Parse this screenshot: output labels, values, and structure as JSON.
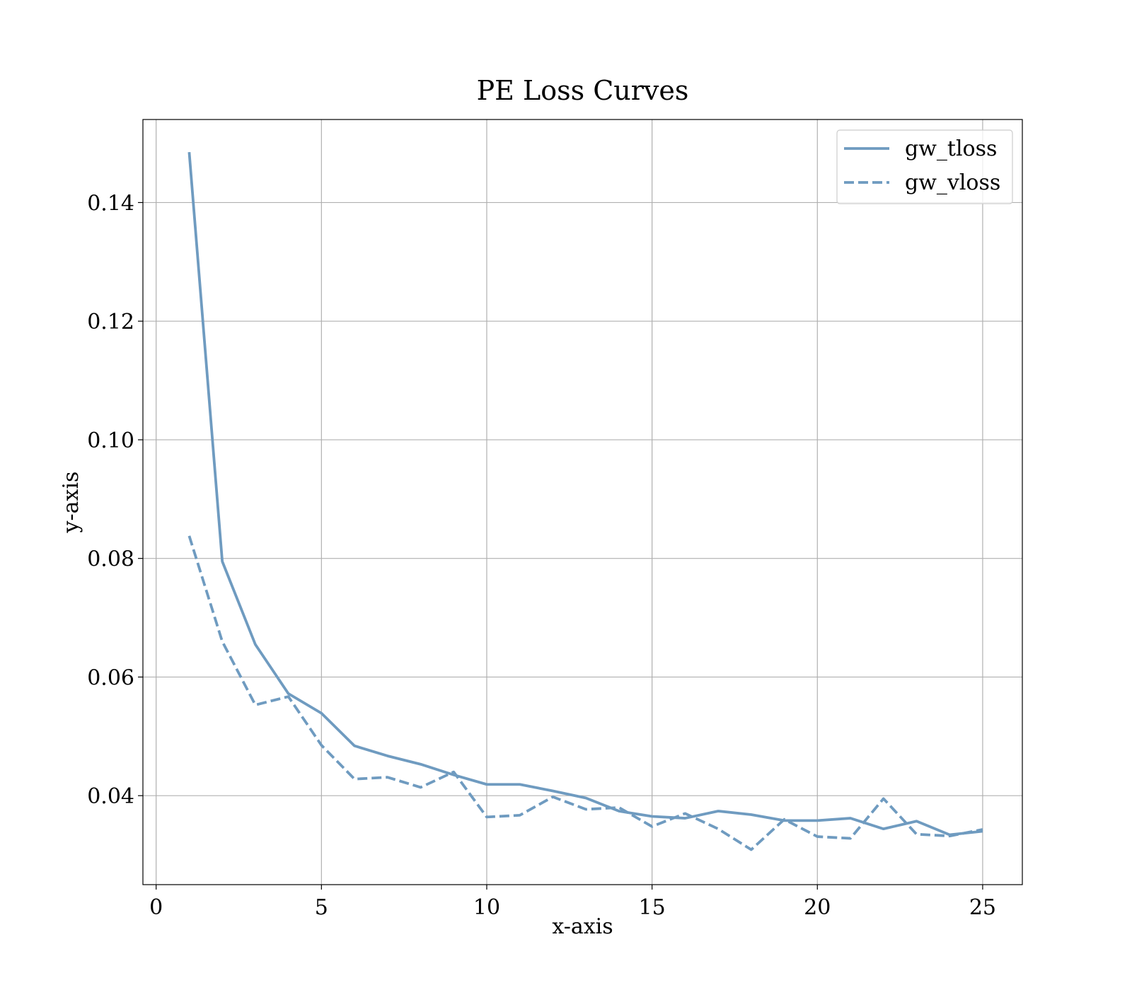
{
  "chart_data": {
    "type": "line",
    "title": "PE Loss Curves",
    "xlabel": "x-axis",
    "ylabel": "y-axis",
    "xlim": [
      -0.4,
      26.2
    ],
    "ylim": [
      0.025,
      0.154
    ],
    "xticks": [
      0,
      5,
      10,
      15,
      20,
      25
    ],
    "xtick_labels": [
      "0",
      "5",
      "10",
      "15",
      "20",
      "25"
    ],
    "yticks": [
      0.04,
      0.06,
      0.08,
      0.1,
      0.12,
      0.14
    ],
    "ytick_labels": [
      "0.04",
      "0.06",
      "0.08",
      "0.10",
      "0.12",
      "0.14"
    ],
    "grid": true,
    "legend_position": "top-right",
    "x": [
      1,
      2,
      3,
      4,
      5,
      6,
      7,
      8,
      9,
      10,
      11,
      12,
      13,
      14,
      15,
      16,
      17,
      18,
      19,
      20,
      21,
      22,
      23,
      24,
      25
    ],
    "series": [
      {
        "name": "gw_tloss",
        "style": "solid",
        "color": "#6f9bc0",
        "values": [
          0.1485,
          0.0795,
          0.0655,
          0.0572,
          0.0539,
          0.0484,
          0.0467,
          0.0453,
          0.0435,
          0.0419,
          0.0419,
          0.0408,
          0.0396,
          0.0374,
          0.0365,
          0.0362,
          0.0374,
          0.0368,
          0.0358,
          0.0358,
          0.0362,
          0.0344,
          0.0357,
          0.0334,
          0.034
        ]
      },
      {
        "name": "gw_vloss",
        "style": "dashed",
        "color": "#6f9bc0",
        "values": [
          0.0838,
          0.066,
          0.0553,
          0.0567,
          0.0485,
          0.0428,
          0.0431,
          0.0414,
          0.044,
          0.0364,
          0.0367,
          0.0398,
          0.0377,
          0.038,
          0.0348,
          0.037,
          0.0344,
          0.0309,
          0.036,
          0.0331,
          0.0328,
          0.0395,
          0.0335,
          0.0332,
          0.0343
        ]
      }
    ]
  }
}
